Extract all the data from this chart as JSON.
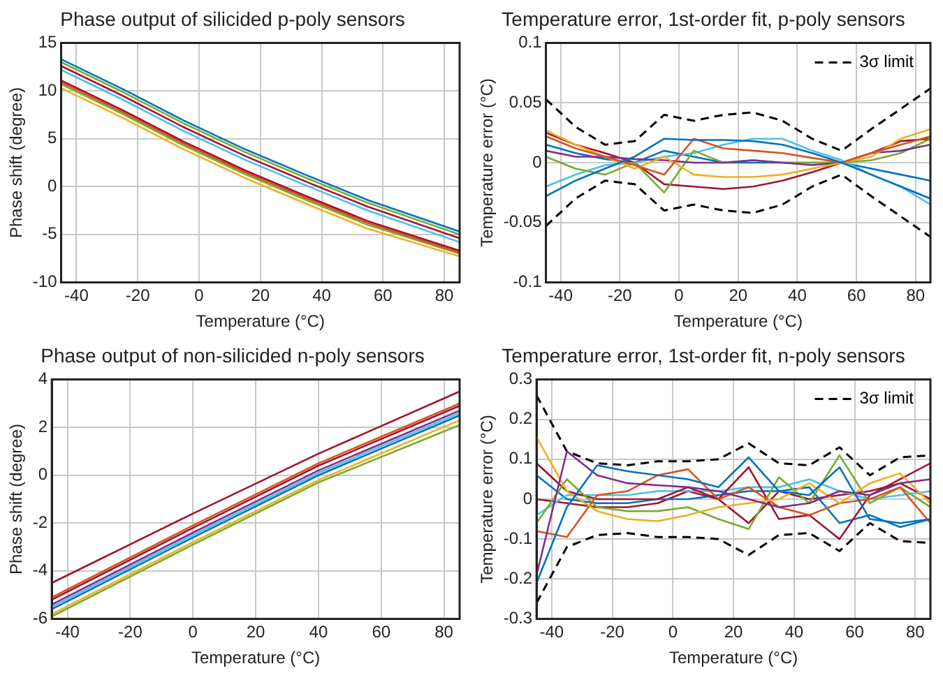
{
  "chart_data": [
    {
      "type": "line",
      "title": "Phase output of silicided p-poly sensors",
      "xlabel": "Temperature (°C)",
      "ylabel": "Phase shift (degree)",
      "xlim": [
        -45,
        85
      ],
      "xticks": [
        -40,
        -20,
        0,
        20,
        40,
        60,
        80
      ],
      "ylim": [
        -10,
        15
      ],
      "yticks": [
        -10,
        -5,
        0,
        5,
        10,
        15
      ],
      "grid": true,
      "marker": "none",
      "x": [
        -45,
        -25,
        -5,
        15,
        35,
        55,
        85
      ],
      "series": [
        {
          "color": "#0072bd",
          "values": [
            13.3,
            10.2,
            6.9,
            3.9,
            1.2,
            -1.4,
            -4.7
          ]
        },
        {
          "color": "#77ac30",
          "values": [
            13.0,
            9.9,
            6.6,
            3.6,
            0.9,
            -1.7,
            -5.0
          ]
        },
        {
          "color": "#a2142f",
          "values": [
            12.6,
            9.5,
            6.2,
            3.2,
            0.5,
            -2.1,
            -5.4
          ]
        },
        {
          "color": "#4dbeee",
          "values": [
            12.2,
            9.1,
            5.8,
            2.8,
            0.1,
            -2.5,
            -5.8
          ]
        },
        {
          "color": "#a2142f",
          "values": [
            11.1,
            8.0,
            4.7,
            1.7,
            -1.0,
            -3.6,
            -6.7
          ]
        },
        {
          "color": "#d95319",
          "values": [
            10.9,
            7.8,
            4.5,
            1.5,
            -1.2,
            -3.8,
            -6.9
          ]
        },
        {
          "color": "#77ac30",
          "values": [
            10.7,
            7.6,
            4.3,
            1.3,
            -1.4,
            -4.0,
            -7.0
          ]
        },
        {
          "color": "#edb120",
          "values": [
            10.3,
            7.2,
            3.9,
            0.9,
            -1.8,
            -4.4,
            -7.3
          ]
        }
      ]
    },
    {
      "type": "line",
      "title": "Temperature error, 1st-order fit, p-poly sensors",
      "xlabel": "Temperature (°C)",
      "ylabel": "Temperature error (°C)",
      "xlim": [
        -45,
        85
      ],
      "xticks": [
        -40,
        -20,
        0,
        20,
        40,
        60,
        80
      ],
      "ylim": [
        -0.1,
        0.1
      ],
      "yticks": [
        -0.1,
        -0.05,
        0,
        0.05,
        0.1
      ],
      "grid": true,
      "marker": "none",
      "legend": "top right",
      "x": [
        -45,
        -35,
        -25,
        -15,
        -5,
        5,
        15,
        25,
        35,
        45,
        55,
        65,
        75,
        85
      ],
      "series": [
        {
          "color": "#0072bd",
          "values": [
            -0.028,
            -0.015,
            -0.005,
            0.005,
            0.02,
            0.019,
            0.019,
            0.018,
            0.015,
            0.008,
            0.0,
            -0.01,
            -0.02,
            -0.03
          ]
        },
        {
          "color": "#d95319",
          "values": [
            0.022,
            0.012,
            0.005,
            -0.002,
            -0.01,
            0.02,
            0.012,
            0.01,
            0.008,
            0.004,
            0.0,
            0.008,
            0.015,
            0.022
          ]
        },
        {
          "color": "#edb120",
          "values": [
            0.027,
            0.015,
            0.005,
            -0.005,
            0.005,
            -0.01,
            -0.012,
            -0.012,
            -0.01,
            -0.005,
            0.0,
            0.005,
            0.02,
            0.028
          ]
        },
        {
          "color": "#7e2f8e",
          "values": [
            0.01,
            0.005,
            0.005,
            0.003,
            0.002,
            0.0,
            0.0,
            0.002,
            0.0,
            -0.002,
            0.0,
            0.008,
            0.01,
            0.015
          ]
        },
        {
          "color": "#77ac30",
          "values": [
            0.005,
            -0.005,
            -0.01,
            0.0,
            -0.025,
            0.01,
            0.0,
            0.002,
            0.0,
            0.0,
            0.0,
            0.002,
            0.008,
            0.02
          ]
        },
        {
          "color": "#4dbeee",
          "values": [
            -0.02,
            -0.01,
            -0.002,
            0.0,
            0.005,
            0.008,
            0.015,
            0.02,
            0.02,
            0.01,
            0.002,
            -0.01,
            -0.02,
            -0.035
          ]
        },
        {
          "color": "#a2142f",
          "values": [
            0.025,
            0.015,
            0.008,
            0.0,
            -0.018,
            -0.02,
            -0.022,
            -0.02,
            -0.015,
            -0.008,
            0.0,
            0.008,
            0.018,
            0.02
          ]
        },
        {
          "color": "#0072bd",
          "values": [
            0.015,
            0.008,
            0.003,
            0.0,
            0.01,
            0.005,
            0.0,
            0.0,
            0.0,
            0.0,
            0.0,
            -0.005,
            -0.01,
            -0.015
          ]
        },
        {
          "name": "3σ limit",
          "color": "#000000",
          "line_style": "dashed",
          "values": [
            0.053,
            0.03,
            0.015,
            0.018,
            0.04,
            0.035,
            0.04,
            0.042,
            0.035,
            0.02,
            0.01,
            0.028,
            0.045,
            0.062
          ]
        },
        {
          "color": "#000000",
          "line_style": "dashed",
          "values": [
            -0.053,
            -0.03,
            -0.015,
            -0.018,
            -0.04,
            -0.035,
            -0.04,
            -0.042,
            -0.035,
            -0.02,
            -0.01,
            -0.028,
            -0.045,
            -0.062
          ]
        }
      ]
    },
    {
      "type": "line",
      "title": "Phase output of non-silicided n-poly sensors",
      "xlabel": "Temperature (°C)",
      "ylabel": "Phase shift (degree)",
      "xlim": [
        -45,
        85
      ],
      "xticks": [
        -40,
        -20,
        0,
        20,
        40,
        60,
        80
      ],
      "ylim": [
        -6,
        4
      ],
      "yticks": [
        -6,
        -4,
        -2,
        0,
        2,
        4
      ],
      "grid": true,
      "marker": "none",
      "x": [
        -45,
        0,
        40,
        85
      ],
      "series": [
        {
          "color": "#a2142f",
          "values": [
            -4.5,
            -1.6,
            0.9,
            3.5
          ]
        },
        {
          "color": "#d95319",
          "values": [
            -5.1,
            -2.1,
            0.5,
            3.0
          ]
        },
        {
          "color": "#a2142f",
          "values": [
            -5.2,
            -2.2,
            0.4,
            2.9
          ]
        },
        {
          "color": "#7e2f8e",
          "values": [
            -5.4,
            -2.4,
            0.2,
            2.7
          ]
        },
        {
          "color": "#4dbeee",
          "values": [
            -5.5,
            -2.5,
            0.1,
            2.6
          ]
        },
        {
          "color": "#0072bd",
          "values": [
            -5.6,
            -2.6,
            0.0,
            2.5
          ]
        },
        {
          "color": "#edb120",
          "values": [
            -5.8,
            -2.8,
            -0.2,
            2.3
          ]
        },
        {
          "color": "#77ac30",
          "values": [
            -5.9,
            -2.9,
            -0.3,
            2.1
          ]
        }
      ]
    },
    {
      "type": "line",
      "title": "Temperature error, 1st-order fit, n-poly sensors",
      "xlabel": "Temperature (°C)",
      "ylabel": "Temperature error (°C)",
      "xlim": [
        -45,
        85
      ],
      "xticks": [
        -40,
        -20,
        0,
        20,
        40,
        60,
        80
      ],
      "ylim": [
        -0.3,
        0.3
      ],
      "yticks": [
        -0.3,
        -0.2,
        -0.1,
        0,
        0.1,
        0.2,
        0.3
      ],
      "grid": true,
      "marker": "none",
      "legend": "top right",
      "x": [
        -45,
        -35,
        -25,
        -15,
        -5,
        5,
        15,
        25,
        35,
        45,
        55,
        65,
        75,
        85
      ],
      "series": [
        {
          "color": "#0072bd",
          "values": [
            -0.21,
            -0.02,
            0.085,
            0.07,
            0.06,
            0.05,
            0.03,
            0.105,
            0.02,
            0.01,
            0.08,
            -0.05,
            -0.06,
            -0.05
          ]
        },
        {
          "color": "#7e2f8e",
          "values": [
            -0.19,
            0.12,
            0.06,
            0.04,
            0.035,
            0.03,
            0.02,
            0.0,
            -0.02,
            -0.01,
            0.02,
            0.01,
            0.04,
            0.05
          ]
        },
        {
          "color": "#edb120",
          "values": [
            0.155,
            0.02,
            -0.03,
            -0.05,
            -0.055,
            -0.04,
            -0.02,
            -0.01,
            0.0,
            0.04,
            -0.01,
            0.04,
            0.065,
            -0.01
          ]
        },
        {
          "color": "#d95319",
          "values": [
            -0.08,
            -0.095,
            0.01,
            0.02,
            0.06,
            0.075,
            0.0,
            0.03,
            -0.02,
            -0.04,
            -0.01,
            0.0,
            0.03,
            -0.06
          ]
        },
        {
          "color": "#77ac30",
          "values": [
            -0.06,
            0.05,
            -0.02,
            -0.03,
            -0.03,
            -0.02,
            -0.05,
            -0.075,
            0.055,
            -0.01,
            0.11,
            -0.01,
            0.03,
            -0.02
          ]
        },
        {
          "color": "#a2142f",
          "values": [
            0.09,
            0.02,
            0.0,
            0.0,
            0.0,
            0.03,
            0.0,
            0.08,
            -0.05,
            -0.04,
            -0.1,
            0.01,
            0.05,
            0.09
          ]
        },
        {
          "color": "#4dbeee",
          "values": [
            -0.04,
            0.01,
            0.01,
            0.01,
            0.02,
            0.02,
            0.02,
            0.03,
            0.03,
            0.05,
            0.02,
            0.0,
            0.01,
            0.02
          ]
        },
        {
          "color": "#0072bd",
          "values": [
            0.06,
            0.0,
            -0.01,
            -0.01,
            0.0,
            0.0,
            0.01,
            0.02,
            0.02,
            0.03,
            -0.06,
            -0.04,
            -0.07,
            -0.05
          ]
        },
        {
          "color": "#a2142f",
          "values": [
            0.0,
            -0.01,
            -0.02,
            -0.02,
            -0.01,
            0.02,
            0.0,
            -0.06,
            0.02,
            0.0,
            0.01,
            0.02,
            0.04,
            0.0
          ]
        },
        {
          "name": "3σ limit",
          "color": "#000000",
          "line_style": "dashed",
          "values": [
            0.26,
            0.12,
            0.09,
            0.085,
            0.095,
            0.095,
            0.1,
            0.14,
            0.09,
            0.085,
            0.13,
            0.06,
            0.105,
            0.11
          ]
        },
        {
          "color": "#000000",
          "line_style": "dashed",
          "values": [
            -0.26,
            -0.12,
            -0.09,
            -0.085,
            -0.095,
            -0.095,
            -0.1,
            -0.14,
            -0.09,
            -0.085,
            -0.13,
            -0.06,
            -0.105,
            -0.11
          ]
        }
      ]
    }
  ]
}
